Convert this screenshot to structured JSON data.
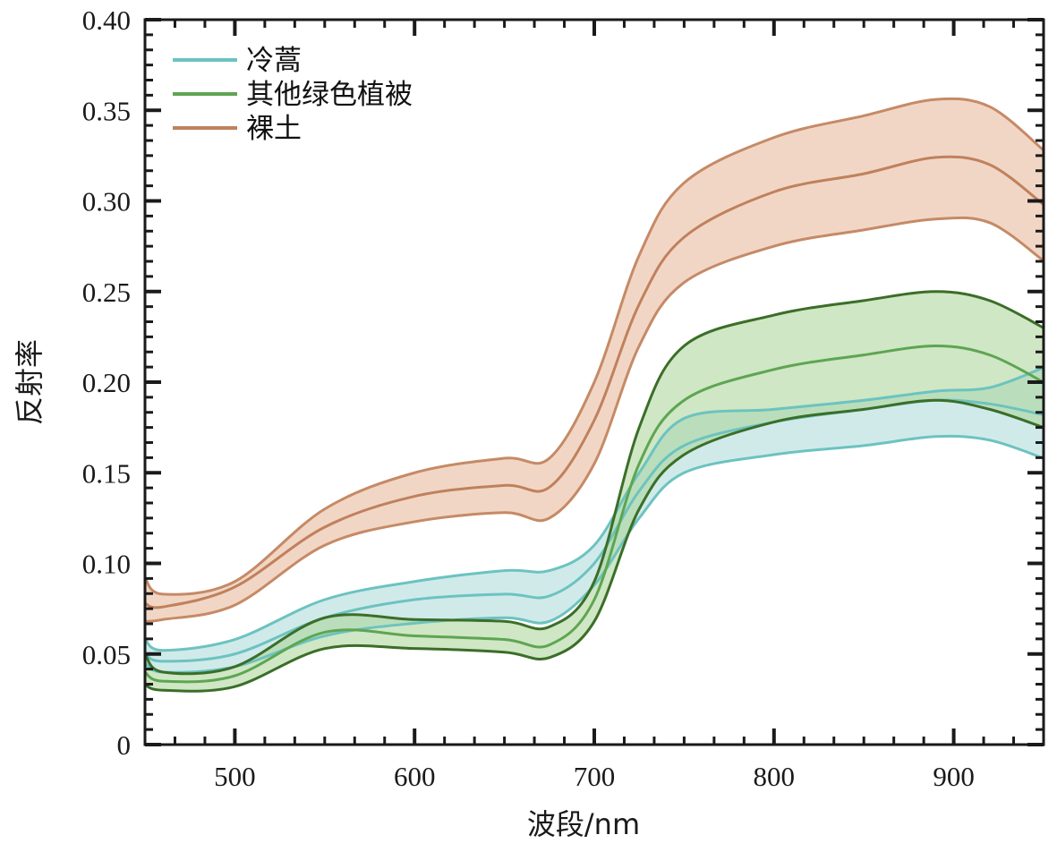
{
  "chart_data": {
    "type": "line",
    "title": "",
    "xlabel": "波段/nm",
    "ylabel": "反射率",
    "xlim": [
      450,
      950
    ],
    "ylim": [
      0,
      0.4
    ],
    "xticks": [
      500,
      600,
      700,
      800,
      900
    ],
    "xtick_labels": [
      "500",
      "600",
      "700",
      "800",
      "900"
    ],
    "yticks": [
      0,
      0.05,
      0.1,
      0.15,
      0.2,
      0.25,
      0.3,
      0.35,
      0.4
    ],
    "ytick_labels": [
      "0",
      "0.05",
      "0.10",
      "0.15",
      "0.20",
      "0.25",
      "0.30",
      "0.35",
      "0.40"
    ],
    "grid": false,
    "legend_position": "top-left",
    "x": [
      450,
      460,
      500,
      550,
      600,
      650,
      675,
      700,
      725,
      750,
      800,
      850,
      890,
      920,
      950
    ],
    "series": [
      {
        "name": "冷蒿",
        "line_color": "#6cc3c0",
        "bound_color": "#6cc3c0",
        "fill_color": "#a9d9d8",
        "mean": [
          0.05,
          0.046,
          0.05,
          0.07,
          0.08,
          0.083,
          0.082,
          0.1,
          0.14,
          0.165,
          0.178,
          0.185,
          0.19,
          0.188,
          0.182
        ],
        "upper": [
          0.058,
          0.052,
          0.058,
          0.08,
          0.09,
          0.096,
          0.096,
          0.11,
          0.15,
          0.18,
          0.185,
          0.19,
          0.195,
          0.197,
          0.208
        ],
        "lower": [
          0.045,
          0.04,
          0.043,
          0.06,
          0.067,
          0.07,
          0.068,
          0.088,
          0.125,
          0.15,
          0.16,
          0.165,
          0.17,
          0.168,
          0.158
        ]
      },
      {
        "name": "其他绿色植被",
        "line_color": "#5ea552",
        "bound_color": "#3b6e28",
        "fill_color": "#a8d494",
        "mean": [
          0.04,
          0.035,
          0.038,
          0.062,
          0.06,
          0.058,
          0.055,
          0.08,
          0.155,
          0.19,
          0.207,
          0.215,
          0.22,
          0.215,
          0.2
        ],
        "upper": [
          0.05,
          0.04,
          0.043,
          0.07,
          0.069,
          0.068,
          0.065,
          0.09,
          0.175,
          0.22,
          0.237,
          0.245,
          0.25,
          0.245,
          0.23
        ],
        "lower": [
          0.033,
          0.03,
          0.032,
          0.053,
          0.053,
          0.051,
          0.048,
          0.068,
          0.13,
          0.16,
          0.178,
          0.185,
          0.19,
          0.185,
          0.175
        ]
      },
      {
        "name": "裸土",
        "line_color": "#bf815c",
        "bound_color": "#c58a66",
        "fill_color": "#eec8b2",
        "mean": [
          0.078,
          0.076,
          0.087,
          0.12,
          0.137,
          0.143,
          0.142,
          0.179,
          0.243,
          0.28,
          0.305,
          0.315,
          0.324,
          0.32,
          0.298
        ],
        "upper": [
          0.092,
          0.083,
          0.09,
          0.13,
          0.15,
          0.158,
          0.158,
          0.2,
          0.27,
          0.31,
          0.335,
          0.347,
          0.356,
          0.352,
          0.328
        ],
        "lower": [
          0.068,
          0.069,
          0.077,
          0.11,
          0.123,
          0.128,
          0.125,
          0.155,
          0.22,
          0.255,
          0.275,
          0.284,
          0.29,
          0.288,
          0.267
        ]
      }
    ]
  }
}
